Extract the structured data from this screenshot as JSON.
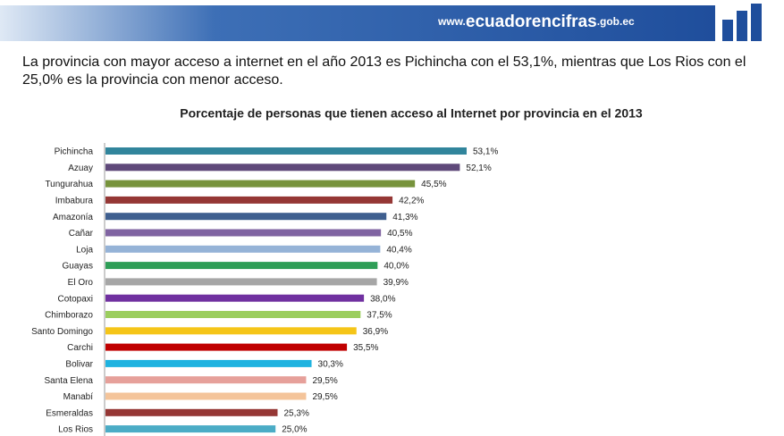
{
  "header": {
    "url_prefix": "www.",
    "url_name": "ecuadorencifras",
    "url_suffix": ".gob.ec"
  },
  "intro": "La provincia con mayor acceso a internet en el año 2013 es Pichincha con el 53,1%, mientras que Los Rios con el 25,0% es la provincia con menor acceso.",
  "chart_data": {
    "type": "bar",
    "orientation": "horizontal",
    "title": "Porcentaje de personas que tienen acceso al Internet  por provincia en el 2013",
    "categories": [
      "Pichincha",
      "Azuay",
      "Tungurahua",
      "Imbabura",
      "Amazonía",
      "Cañar",
      "Loja",
      "Guayas",
      "El Oro",
      "Cotopaxi",
      "Chimborazo",
      "Santo Domingo",
      "Carchi",
      "Bolivar",
      "Santa Elena",
      "Manabí",
      "Esmeraldas",
      "Los Rios"
    ],
    "values": [
      53.1,
      52.1,
      45.5,
      42.2,
      41.3,
      40.5,
      40.4,
      40.0,
      39.9,
      38.0,
      37.5,
      36.9,
      35.5,
      30.3,
      29.5,
      29.5,
      25.3,
      25.0
    ],
    "value_labels": [
      "53,1%",
      "52,1%",
      "45,5%",
      "42,2%",
      "41,3%",
      "40,5%",
      "40,4%",
      "40,0%",
      "39,9%",
      "38,0%",
      "37,5%",
      "36,9%",
      "35,5%",
      "30,3%",
      "29,5%",
      "29,5%",
      "25,3%",
      "25,0%"
    ],
    "colors": [
      "#31859c",
      "#5f497a",
      "#77933c",
      "#953735",
      "#3f5f8f",
      "#8064a2",
      "#95b3d7",
      "#2e9e57",
      "#a6a6a6",
      "#7030a0",
      "#9bce5e",
      "#f5c518",
      "#c00000",
      "#1fb3e0",
      "#e6a09a",
      "#f4c49a",
      "#953735",
      "#4bacc6"
    ]
  }
}
